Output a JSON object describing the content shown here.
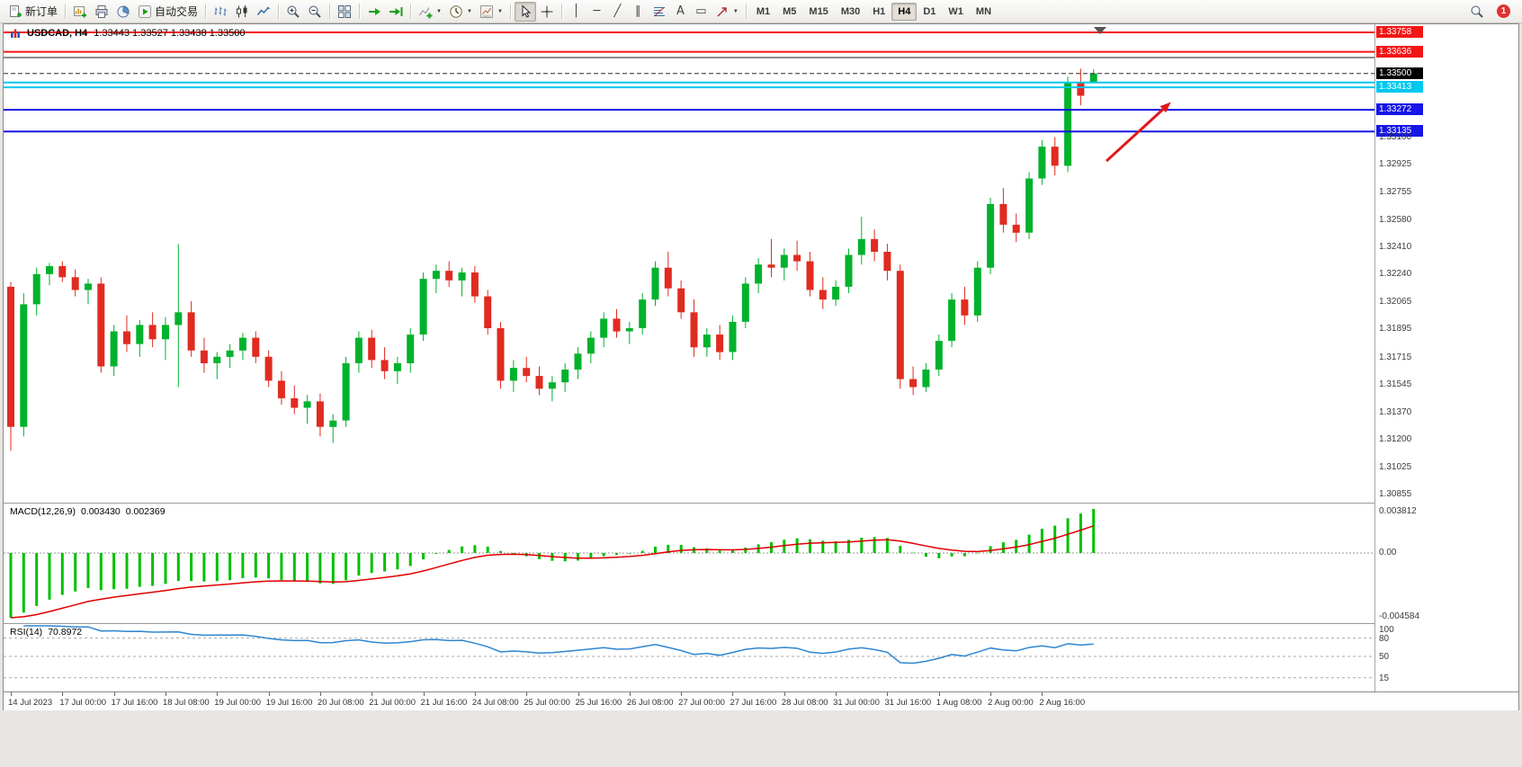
{
  "toolbar": {
    "groups": [
      [
        {
          "name": "new-order",
          "icon": "doc",
          "label": "新订单"
        }
      ],
      [
        {
          "name": "new-chart",
          "icon": "chartnew"
        },
        {
          "name": "profiles",
          "icon": "print"
        },
        {
          "name": "market-watch",
          "icon": "pie"
        },
        {
          "name": "autotrading",
          "icon": "play",
          "label": "自动交易"
        }
      ],
      [
        {
          "name": "bar-chart-mode",
          "icon": "bars"
        },
        {
          "name": "candlestick-mode",
          "icon": "candle"
        },
        {
          "name": "line-chart-mode",
          "icon": "line"
        }
      ],
      [
        {
          "name": "zoom-in",
          "icon": "magp"
        },
        {
          "name": "zoom-out",
          "icon": "magm"
        }
      ],
      [
        {
          "name": "tile-windows",
          "icon": "grid"
        }
      ],
      [
        {
          "name": "auto-scroll",
          "icon": "scroll"
        },
        {
          "name": "chart-shift",
          "icon": "shift"
        }
      ],
      [
        {
          "name": "indicators",
          "icon": "ind",
          "caret": true
        },
        {
          "name": "periods",
          "icon": "clock",
          "caret": true
        },
        {
          "name": "templates",
          "icon": "tpl",
          "caret": true
        }
      ],
      [
        {
          "name": "cursor",
          "icon": "pointer",
          "active": true
        },
        {
          "name": "crosshair",
          "icon": "cross"
        }
      ],
      [
        {
          "name": "vertical-line",
          "glyph": "│"
        },
        {
          "name": "horizontal-line",
          "glyph": "─"
        },
        {
          "name": "trendline",
          "glyph": "╱"
        },
        {
          "name": "equidistant-channel",
          "glyph": "∥"
        },
        {
          "name": "fibonacci",
          "icon": "fibo"
        },
        {
          "name": "text",
          "glyph": "A"
        },
        {
          "name": "text-label",
          "glyph": "▭"
        },
        {
          "name": "arrows",
          "icon": "ne",
          "caret": true
        }
      ]
    ],
    "timeframes": [
      {
        "label": "M1"
      },
      {
        "label": "M5"
      },
      {
        "label": "M15"
      },
      {
        "label": "M30"
      },
      {
        "label": "H1"
      },
      {
        "label": "H4",
        "active": true
      },
      {
        "label": "D1"
      },
      {
        "label": "W1"
      },
      {
        "label": "MN"
      }
    ],
    "notification_count": "1"
  },
  "chart": {
    "symbol_period": "USDCAD, H4",
    "ohlc_line": "1.33443 1.33527 1.33438 1.33500"
  },
  "chart_data": {
    "type": "candlestick",
    "symbol": "USDCAD",
    "timeframe": "H4",
    "title": "USDCAD, H4 1.33443 1.33527 1.33438 1.33500",
    "current_ohlc": {
      "open": "1.33443",
      "high": "1.33527",
      "low": "1.33438",
      "close": "1.33500"
    },
    "colors": {
      "bull": "#00b22c",
      "bear": "#e02b20",
      "arrow": "#e01818"
    },
    "price_ticks": [
      "1.33100",
      "1.32925",
      "1.32755",
      "1.32580",
      "1.32410",
      "1.32240",
      "1.32065",
      "1.31895",
      "1.31715",
      "1.31545",
      "1.31370",
      "1.31200",
      "1.31025",
      "1.30855"
    ],
    "hlines": [
      {
        "price": 1.33758,
        "color": "#f21616",
        "width": 2,
        "label": "1.33758"
      },
      {
        "price": 1.33636,
        "color": "#f21616",
        "width": 2,
        "label": "1.33636"
      },
      {
        "price": 1.336,
        "color": "#1a1a1a",
        "width": 1
      },
      {
        "price": 1.335,
        "color": "#2b2b2b",
        "width": 1,
        "dash": "5,3",
        "label": "1.33500",
        "label_bg": "#000000"
      },
      {
        "price": 1.33443,
        "color": "#00c8ee",
        "width": 2
      },
      {
        "price": 1.33413,
        "color": "#00c8ee",
        "width": 2,
        "label": "1.33413"
      },
      {
        "price": 1.33272,
        "color": "#1616e6",
        "width": 2,
        "label": "1.33272"
      },
      {
        "price": 1.33135,
        "color": "#1616e6",
        "width": 2,
        "label": "1.33135"
      }
    ],
    "arrow": {
      "from": {
        "i": 85,
        "price": 1.3295
      },
      "to": {
        "i": 90,
        "price": 1.3332
      },
      "color": "#e01818"
    },
    "time_labels": [
      "14 Jul 2023",
      "17 Jul 00:00",
      "17 Jul 16:00",
      "18 Jul 08:00",
      "19 Jul 00:00",
      "19 Jul 16:00",
      "20 Jul 08:00",
      "21 Jul 00:00",
      "21 Jul 16:00",
      "24 Jul 08:00",
      "25 Jul 00:00",
      "25 Jul 16:00",
      "26 Jul 08:00",
      "27 Jul 00:00",
      "27 Jul 16:00",
      "28 Jul 08:00",
      "31 Jul 00:00",
      "31 Jul 16:00",
      "1 Aug 08:00",
      "2 Aug 00:00",
      "2 Aug 16:00"
    ],
    "candles": [
      [
        1.3216,
        1.3219,
        1.3113,
        1.3128
      ],
      [
        1.3128,
        1.3212,
        1.3122,
        1.3205
      ],
      [
        1.3205,
        1.3228,
        1.3198,
        1.3224
      ],
      [
        1.3224,
        1.3231,
        1.3217,
        1.3229
      ],
      [
        1.3229,
        1.3232,
        1.3219,
        1.3222
      ],
      [
        1.3222,
        1.3227,
        1.321,
        1.3214
      ],
      [
        1.3214,
        1.3221,
        1.3205,
        1.3218
      ],
      [
        1.3218,
        1.3222,
        1.3162,
        1.3166
      ],
      [
        1.3166,
        1.3192,
        1.316,
        1.3188
      ],
      [
        1.3188,
        1.3198,
        1.3175,
        1.318
      ],
      [
        1.318,
        1.3195,
        1.3172,
        1.3192
      ],
      [
        1.3192,
        1.32,
        1.3178,
        1.3183
      ],
      [
        1.3183,
        1.3197,
        1.317,
        1.3192
      ],
      [
        1.3192,
        1.3243,
        1.3153,
        1.32
      ],
      [
        1.32,
        1.3207,
        1.3172,
        1.3176
      ],
      [
        1.3176,
        1.3184,
        1.3162,
        1.3168
      ],
      [
        1.3168,
        1.3175,
        1.3158,
        1.3172
      ],
      [
        1.3172,
        1.318,
        1.3165,
        1.3176
      ],
      [
        1.3176,
        1.3187,
        1.317,
        1.3184
      ],
      [
        1.3184,
        1.3188,
        1.3168,
        1.3172
      ],
      [
        1.3172,
        1.3176,
        1.3153,
        1.3157
      ],
      [
        1.3157,
        1.3163,
        1.3142,
        1.3146
      ],
      [
        1.3146,
        1.3154,
        1.3136,
        1.314
      ],
      [
        1.314,
        1.3148,
        1.313,
        1.3144
      ],
      [
        1.3144,
        1.3149,
        1.3122,
        1.3128
      ],
      [
        1.3128,
        1.3136,
        1.3118,
        1.3132
      ],
      [
        1.3132,
        1.3172,
        1.3128,
        1.3168
      ],
      [
        1.3168,
        1.3188,
        1.3162,
        1.3184
      ],
      [
        1.3184,
        1.3189,
        1.3165,
        1.317
      ],
      [
        1.317,
        1.3178,
        1.3158,
        1.3163
      ],
      [
        1.3163,
        1.3172,
        1.3155,
        1.3168
      ],
      [
        1.3168,
        1.319,
        1.3162,
        1.3186
      ],
      [
        1.3186,
        1.3225,
        1.3182,
        1.3221
      ],
      [
        1.3221,
        1.323,
        1.3212,
        1.3226
      ],
      [
        1.3226,
        1.3232,
        1.3216,
        1.322
      ],
      [
        1.322,
        1.3228,
        1.321,
        1.3225
      ],
      [
        1.3225,
        1.3229,
        1.3206,
        1.321
      ],
      [
        1.321,
        1.3214,
        1.3186,
        1.319
      ],
      [
        1.319,
        1.3194,
        1.3152,
        1.3157
      ],
      [
        1.3157,
        1.317,
        1.315,
        1.3165
      ],
      [
        1.3165,
        1.3172,
        1.3156,
        1.316
      ],
      [
        1.316,
        1.3166,
        1.3148,
        1.3152
      ],
      [
        1.3152,
        1.316,
        1.3144,
        1.3156
      ],
      [
        1.3156,
        1.3168,
        1.315,
        1.3164
      ],
      [
        1.3164,
        1.3178,
        1.3158,
        1.3174
      ],
      [
        1.3174,
        1.3188,
        1.3168,
        1.3184
      ],
      [
        1.3184,
        1.32,
        1.3178,
        1.3196
      ],
      [
        1.3196,
        1.3202,
        1.3184,
        1.3188
      ],
      [
        1.3188,
        1.3194,
        1.318,
        1.319
      ],
      [
        1.319,
        1.3212,
        1.3186,
        1.3208
      ],
      [
        1.3208,
        1.3232,
        1.3204,
        1.3228
      ],
      [
        1.3228,
        1.3238,
        1.321,
        1.3215
      ],
      [
        1.3215,
        1.322,
        1.3196,
        1.32
      ],
      [
        1.32,
        1.3208,
        1.3172,
        1.3178
      ],
      [
        1.3178,
        1.319,
        1.3172,
        1.3186
      ],
      [
        1.3186,
        1.3192,
        1.317,
        1.3175
      ],
      [
        1.3175,
        1.3198,
        1.317,
        1.3194
      ],
      [
        1.3194,
        1.3222,
        1.319,
        1.3218
      ],
      [
        1.3218,
        1.3234,
        1.3212,
        1.323
      ],
      [
        1.323,
        1.3246,
        1.3222,
        1.3228
      ],
      [
        1.3228,
        1.324,
        1.322,
        1.3236
      ],
      [
        1.3236,
        1.3245,
        1.3226,
        1.3232
      ],
      [
        1.3232,
        1.3238,
        1.321,
        1.3214
      ],
      [
        1.3214,
        1.3222,
        1.3202,
        1.3208
      ],
      [
        1.3208,
        1.322,
        1.3204,
        1.3216
      ],
      [
        1.3216,
        1.324,
        1.3212,
        1.3236
      ],
      [
        1.3236,
        1.326,
        1.323,
        1.3246
      ],
      [
        1.3246,
        1.3252,
        1.3232,
        1.3238
      ],
      [
        1.3238,
        1.3243,
        1.322,
        1.3226
      ],
      [
        1.3226,
        1.323,
        1.3152,
        1.3158
      ],
      [
        1.3158,
        1.3166,
        1.3148,
        1.3153
      ],
      [
        1.3153,
        1.3168,
        1.315,
        1.3164
      ],
      [
        1.3164,
        1.3186,
        1.316,
        1.3182
      ],
      [
        1.3182,
        1.3212,
        1.3178,
        1.3208
      ],
      [
        1.3208,
        1.3216,
        1.3192,
        1.3198
      ],
      [
        1.3198,
        1.3232,
        1.3194,
        1.3228
      ],
      [
        1.3228,
        1.3272,
        1.3224,
        1.3268
      ],
      [
        1.3268,
        1.3278,
        1.325,
        1.3255
      ],
      [
        1.3255,
        1.3262,
        1.3244,
        1.325
      ],
      [
        1.325,
        1.3288,
        1.3246,
        1.3284
      ],
      [
        1.3284,
        1.3308,
        1.328,
        1.3304
      ],
      [
        1.3304,
        1.331,
        1.3286,
        1.3292
      ],
      [
        1.3292,
        1.3348,
        1.3288,
        1.3344
      ],
      [
        1.3344,
        1.3353,
        1.333,
        1.3336
      ],
      [
        1.33443,
        1.33527,
        1.33438,
        1.335
      ]
    ],
    "indicators": {
      "macd": {
        "label": "MACD(12,26,9)",
        "value_main": "0.003430",
        "value_signal": "0.002369",
        "params": [
          12,
          26,
          9
        ],
        "axis_labels": [
          "0.003812",
          "0.00",
          "-0.004584"
        ],
        "colors": {
          "hist": "#00c000",
          "signal": "#e00000"
        }
      },
      "rsi": {
        "label": "RSI(14)",
        "value": "70.8972",
        "period": 14,
        "levels": [
          80,
          50,
          15
        ],
        "axis_labels": [
          "100",
          "80",
          "50",
          "15"
        ],
        "color": "#2e86d0"
      }
    }
  }
}
